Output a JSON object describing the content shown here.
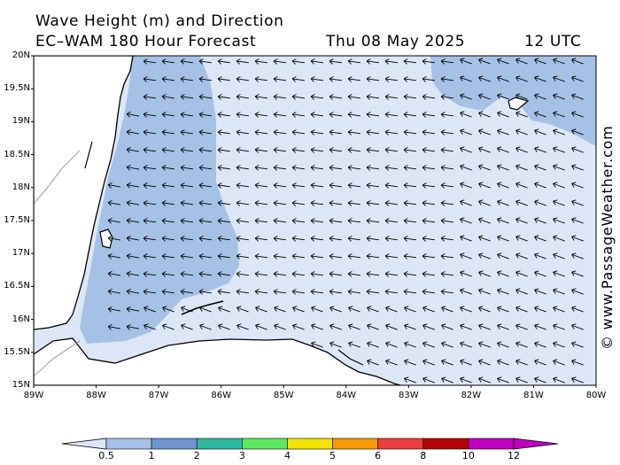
{
  "title_line1": "Wave Height (m) and Direction",
  "title_line2": "EC–WAM 180 Hour Forecast",
  "date": "Thu 08 May 2025",
  "time": "12 UTC",
  "copyright": "© www.PassageWeather.com",
  "map": {
    "lat_range": [
      15,
      20
    ],
    "lon_range": [
      -89,
      -80
    ],
    "lat_labels": [
      "20N",
      "19.5N",
      "19N",
      "18.5N",
      "18N",
      "17.5N",
      "17N",
      "16.5N",
      "16N",
      "15.5N",
      "15N"
    ],
    "lon_labels": [
      "89W",
      "88W",
      "87W",
      "86W",
      "85W",
      "84W",
      "83W",
      "82W",
      "81W",
      "80W"
    ],
    "wave_direction": "from the east / east-northeast"
  },
  "colorbar": {
    "labels": [
      "0.5",
      "1",
      "2",
      "3",
      "4",
      "5",
      "6",
      "8",
      "10",
      "12"
    ],
    "colors": [
      "#dde6f4",
      "#a7c1e4",
      "#6b95d0",
      "#30b79e",
      "#5ee85e",
      "#f3e500",
      "#f59a06",
      "#ec3d3d",
      "#b60404",
      "#c000c0"
    ]
  }
}
